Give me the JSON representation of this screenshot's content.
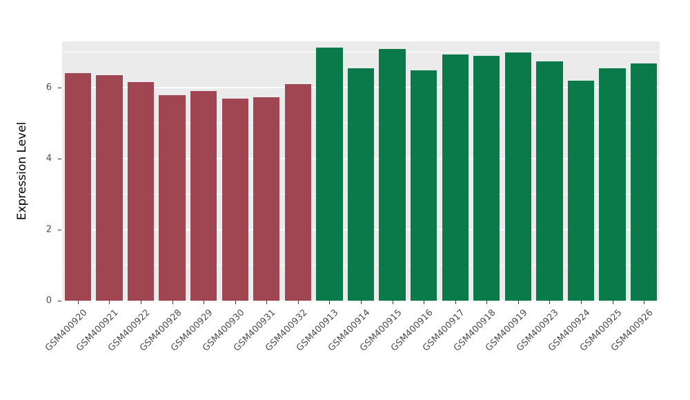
{
  "figure": {
    "y_axis_title": "Expression Level"
  },
  "style": {
    "panel_bg": "#EBEBEB",
    "grid_color": "#FFFFFF",
    "tick_color": "#333333",
    "tick_label_color": "#4D4D4D",
    "group1_color": "#A04552",
    "group2_color": "#0B7A4A"
  },
  "chart_data": {
    "type": "bar",
    "title": "",
    "xlabel": "",
    "ylabel": "Expression Level",
    "ylim": [
      0,
      7.3
    ],
    "yticks": [
      0,
      2,
      4,
      6
    ],
    "yticks_minor": [
      1,
      3,
      5,
      7
    ],
    "grid": true,
    "legend": "none",
    "categories": [
      "GSM400920",
      "GSM400921",
      "GSM400922",
      "GSM400928",
      "GSM400929",
      "GSM400930",
      "GSM400931",
      "GSM400932",
      "GSM400913",
      "GSM400914",
      "GSM400915",
      "GSM400916",
      "GSM400917",
      "GSM400918",
      "GSM400919",
      "GSM400923",
      "GSM400924",
      "GSM400925",
      "GSM400926"
    ],
    "values": [
      6.4,
      6.35,
      6.15,
      5.78,
      5.9,
      5.68,
      5.72,
      6.1,
      7.12,
      6.55,
      7.08,
      6.48,
      6.93,
      6.9,
      6.98,
      6.73,
      6.2,
      6.55,
      6.68
    ],
    "bar_colors": [
      "#A04552",
      "#A04552",
      "#A04552",
      "#A04552",
      "#A04552",
      "#A04552",
      "#A04552",
      "#A04552",
      "#0B7A4A",
      "#0B7A4A",
      "#0B7A4A",
      "#0B7A4A",
      "#0B7A4A",
      "#0B7A4A",
      "#0B7A4A",
      "#0B7A4A",
      "#0B7A4A",
      "#0B7A4A",
      "#0B7A4A"
    ]
  }
}
